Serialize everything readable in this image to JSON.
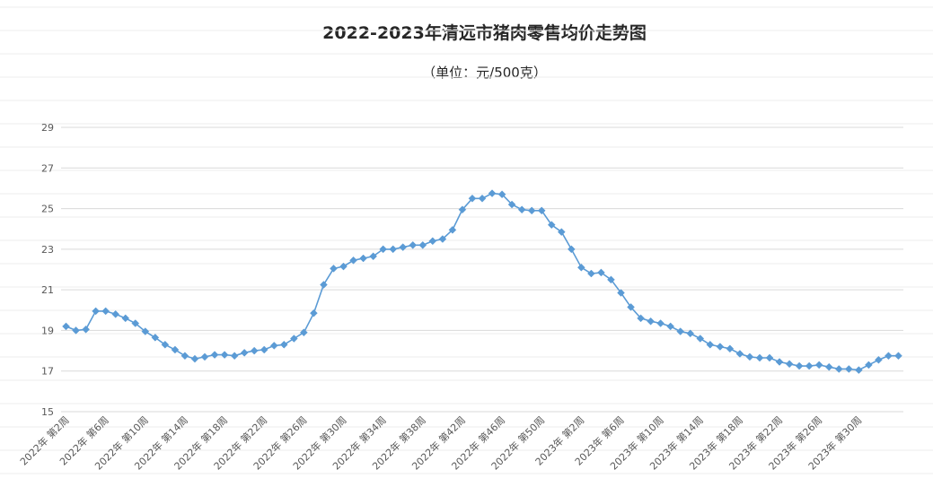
{
  "chart_data": {
    "type": "line",
    "title": "2022-2023年清远市猪肉零售均价走势图",
    "subtitle": "（单位：元/500克）",
    "ylim": [
      15,
      29
    ],
    "yticks": [
      15,
      17,
      19,
      21,
      23,
      25,
      27,
      29
    ],
    "grid": true,
    "legend": "none",
    "color": "#5B9BD5",
    "x": [
      "2022年 第2周",
      "2022年 第3周",
      "2022年 第4周",
      "2022年 第5周",
      "2022年 第6周",
      "2022年 第7周",
      "2022年 第8周",
      "2022年 第9周",
      "2022年 第10周",
      "2022年 第11周",
      "2022年 第12周",
      "2022年 第13周",
      "2022年 第14周",
      "2022年 第15周",
      "2022年 第16周",
      "2022年 第17周",
      "2022年 第18周",
      "2022年 第19周",
      "2022年 第20周",
      "2022年 第21周",
      "2022年 第22周",
      "2022年 第23周",
      "2022年 第24周",
      "2022年 第25周",
      "2022年 第26周",
      "2022年 第27周",
      "2022年 第28周",
      "2022年 第29周",
      "2022年 第30周",
      "2022年 第31周",
      "2022年 第32周",
      "2022年 第33周",
      "2022年 第34周",
      "2022年 第35周",
      "2022年 第36周",
      "2022年 第37周",
      "2022年 第38周",
      "2022年 第39周",
      "2022年 第40周",
      "2022年 第41周",
      "2022年 第42周",
      "2022年 第43周",
      "2022年 第44周",
      "2022年 第45周",
      "2022年 第46周",
      "2022年 第47周",
      "2022年 第48周",
      "2022年 第49周",
      "2022年 第50周",
      "2022年 第51周",
      "2022年 第52周",
      "2023年 第1周",
      "2023年 第2周",
      "2023年 第3周",
      "2023年 第4周",
      "2023年 第5周",
      "2023年 第6周",
      "2023年 第7周",
      "2023年 第8周",
      "2023年 第9周",
      "2023年 第10周",
      "2023年 第11周",
      "2023年 第12周",
      "2023年 第13周",
      "2023年 第14周",
      "2023年 第15周",
      "2023年 第16周",
      "2023年 第17周",
      "2023年 第18周",
      "2023年 第19周",
      "2023年 第20周",
      "2023年 第21周",
      "2023年 第22周",
      "2023年 第23周",
      "2023年 第24周",
      "2023年 第25周",
      "2023年 第26周",
      "2023年 第27周",
      "2023年 第28周",
      "2023年 第29周",
      "2023年 第30周",
      "2023年 第31周",
      "2023年 第32周",
      "2023年 第33周",
      "2023年 第34周"
    ],
    "xticks": [
      "2022年 第2周",
      "2022年 第6周",
      "2022年 第10周",
      "2022年 第14周",
      "2022年 第18周",
      "2022年 第22周",
      "2022年 第26周",
      "2022年 第30周",
      "2022年 第34周",
      "2022年 第38周",
      "2022年 第42周",
      "2022年 第46周",
      "2022年 第50周",
      "2023年 第2周",
      "2023年 第6周",
      "2023年 第10周",
      "2023年 第14周",
      "2023年 第18周",
      "2023年 第22周",
      "2023年 第26周",
      "2023年 第30周"
    ],
    "values": [
      19.2,
      19.0,
      19.05,
      19.95,
      19.95,
      19.8,
      19.6,
      19.35,
      18.95,
      18.65,
      18.3,
      18.05,
      17.75,
      17.6,
      17.7,
      17.8,
      17.8,
      17.75,
      17.9,
      18.0,
      18.05,
      18.25,
      18.3,
      18.6,
      18.9,
      19.85,
      21.25,
      22.05,
      22.15,
      22.45,
      22.55,
      22.65,
      23.0,
      23.0,
      23.1,
      23.2,
      23.2,
      23.4,
      23.5,
      23.95,
      24.95,
      25.5,
      25.5,
      25.75,
      25.7,
      25.2,
      24.95,
      24.9,
      24.9,
      24.2,
      23.85,
      23.0,
      22.1,
      21.8,
      21.85,
      21.5,
      20.85,
      20.15,
      19.6,
      19.45,
      19.35,
      19.2,
      18.95,
      18.85,
      18.6,
      18.3,
      18.2,
      18.1,
      17.85,
      17.7,
      17.65,
      17.65,
      17.45,
      17.35,
      17.25,
      17.25,
      17.3,
      17.2,
      17.1,
      17.1,
      17.05,
      17.3,
      17.55,
      17.75,
      17.75
    ]
  }
}
